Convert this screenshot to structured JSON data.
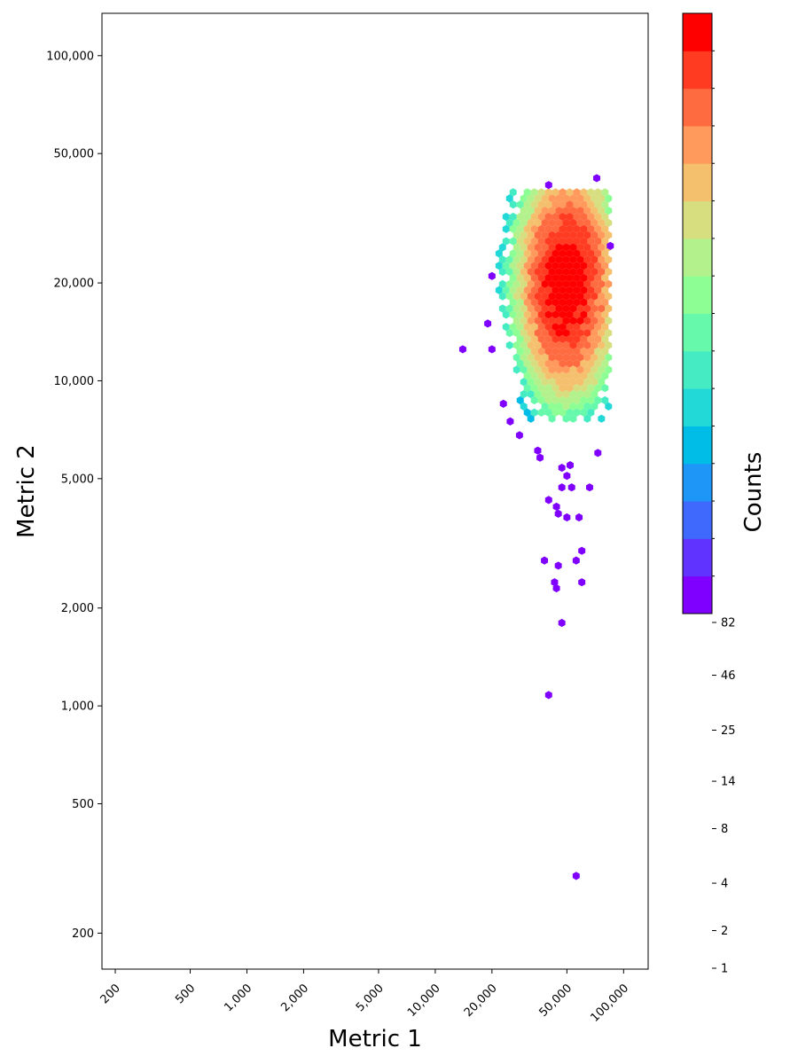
{
  "chart_data": {
    "type": "heatmap",
    "subtype": "hexbin",
    "title": "",
    "xlabel": "Metric 1",
    "ylabel": "Metric 2",
    "xscale": "log",
    "yscale": "log",
    "xlim": [
      170,
      135000
    ],
    "ylim": [
      155,
      135000
    ],
    "grid": false,
    "x_ticks": [
      {
        "value": 200,
        "label": "200"
      },
      {
        "value": 500,
        "label": "500"
      },
      {
        "value": 1000,
        "label": "1,000"
      },
      {
        "value": 2000,
        "label": "2,000"
      },
      {
        "value": 5000,
        "label": "5,000"
      },
      {
        "value": 10000,
        "label": "10,000"
      },
      {
        "value": 20000,
        "label": "20,000"
      },
      {
        "value": 50000,
        "label": "50,000"
      },
      {
        "value": 100000,
        "label": "100,000"
      }
    ],
    "y_ticks": [
      {
        "value": 200,
        "label": "200"
      },
      {
        "value": 500,
        "label": "500"
      },
      {
        "value": 1000,
        "label": "1,000"
      },
      {
        "value": 2000,
        "label": "2,000"
      },
      {
        "value": 5000,
        "label": "5,000"
      },
      {
        "value": 10000,
        "label": "10,000"
      },
      {
        "value": 20000,
        "label": "20,000"
      },
      {
        "value": 50000,
        "label": "50,000"
      },
      {
        "value": 100000,
        "label": "100,000"
      }
    ],
    "colorbar": {
      "label": "Counts",
      "colormap": "rainbow",
      "levels": 16,
      "colors": [
        "#8000ff",
        "#6033ff",
        "#3f68fd",
        "#1e96f8",
        "#00bde8",
        "#22d9d8",
        "#45ecc3",
        "#66f9ab",
        "#8cfe94",
        "#b2f18b",
        "#d6de80",
        "#f5c06e",
        "#ff9a5c",
        "#ff6b41",
        "#ff3b22",
        "#ff0000"
      ],
      "tick_labels": [
        {
          "value": 82,
          "label": "82"
        },
        {
          "value": 46,
          "label": "46"
        },
        {
          "value": 25,
          "label": "25"
        },
        {
          "value": 14,
          "label": "14"
        },
        {
          "value": 8,
          "label": "8"
        },
        {
          "value": 4,
          "label": "4"
        },
        {
          "value": 2,
          "label": "2"
        },
        {
          "value": 1,
          "label": "1"
        }
      ]
    },
    "density_model": {
      "center": [
        50000,
        20000
      ],
      "log_sigma_x": 0.18,
      "log_sigma_y": 0.24,
      "peak_count": 82,
      "extent_x": [
        20000,
        85000
      ],
      "extent_y": [
        7500,
        38000
      ]
    },
    "outliers": [
      [
        14000,
        12500
      ],
      [
        19000,
        15000
      ],
      [
        20000,
        12500
      ],
      [
        23000,
        8500
      ],
      [
        25000,
        7500
      ],
      [
        28000,
        6800
      ],
      [
        36000,
        5800
      ],
      [
        40000,
        4300
      ],
      [
        44000,
        4100
      ],
      [
        45000,
        3900
      ],
      [
        50000,
        3800
      ],
      [
        58000,
        3800
      ],
      [
        38000,
        2800
      ],
      [
        45000,
        2700
      ],
      [
        60000,
        3000
      ],
      [
        56000,
        2800
      ],
      [
        43000,
        2400
      ],
      [
        44000,
        2300
      ],
      [
        60000,
        2400
      ],
      [
        47000,
        1800
      ],
      [
        40000,
        1080
      ],
      [
        56000,
        300
      ],
      [
        72000,
        42000
      ],
      [
        40000,
        40000
      ],
      [
        85000,
        26000
      ],
      [
        66000,
        4700
      ],
      [
        53000,
        4700
      ],
      [
        50000,
        5100
      ],
      [
        47000,
        5400
      ],
      [
        35000,
        6100
      ],
      [
        73000,
        6000
      ],
      [
        20000,
        21000
      ],
      [
        47000,
        4700
      ],
      [
        52000,
        5500
      ]
    ]
  }
}
